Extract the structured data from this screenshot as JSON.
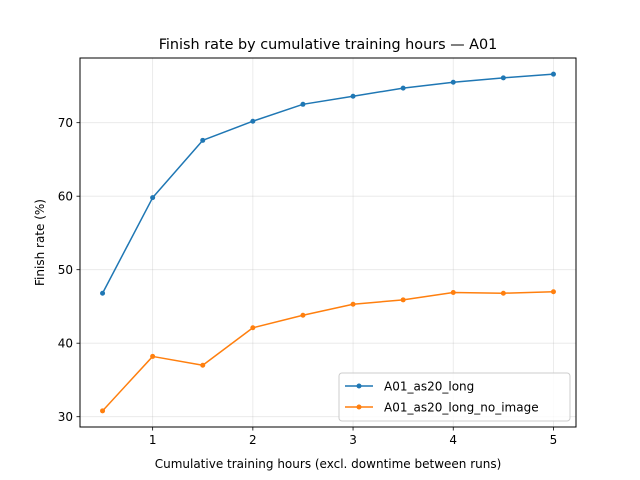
{
  "chart_data": {
    "type": "line",
    "title": "Finish rate by cumulative training hours — A01",
    "xlabel": "Cumulative training hours (excl. downtime between runs)",
    "ylabel": "Finish rate (%)",
    "xlim": [
      0.275,
      5.225
    ],
    "ylim": [
      28.6,
      78.8
    ],
    "xticks": [
      1,
      2,
      3,
      4,
      5
    ],
    "yticks": [
      30,
      40,
      50,
      60,
      70
    ],
    "grid": true,
    "legend_position": "lower right",
    "x": [
      0.5,
      1.0,
      1.5,
      2.0,
      2.5,
      3.0,
      3.5,
      4.0,
      4.5,
      5.0
    ],
    "series": [
      {
        "name": "A01_as20_long",
        "color": "#1f77b4",
        "marker": "circle",
        "values": [
          46.8,
          59.8,
          67.6,
          70.2,
          72.5,
          73.6,
          74.7,
          75.5,
          76.1,
          76.6
        ]
      },
      {
        "name": "A01_as20_long_no_image",
        "color": "#ff7f0e",
        "marker": "circle",
        "values": [
          30.8,
          38.2,
          37.0,
          42.1,
          43.8,
          45.3,
          45.9,
          46.9,
          46.8,
          47.0
        ]
      }
    ]
  }
}
